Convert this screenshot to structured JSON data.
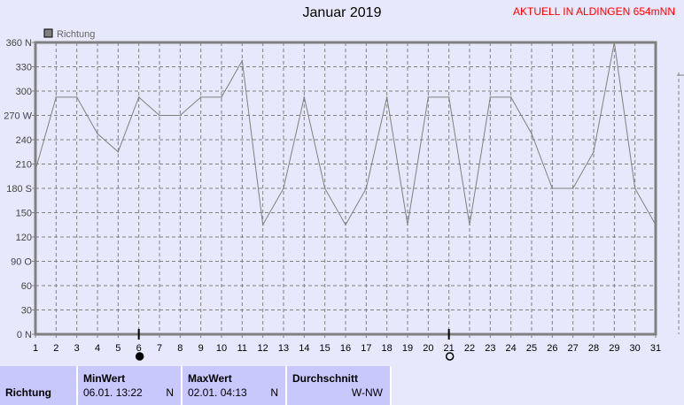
{
  "header": {
    "title": "Januar 2019",
    "station": "AKTUELL IN ALDINGEN 654mNN"
  },
  "chart_data": {
    "type": "line",
    "title": "Januar 2019",
    "legend": [
      "Richtung"
    ],
    "legend_placement": "top-left",
    "grid": true,
    "ylim": [
      0,
      360
    ],
    "xlim": [
      1,
      31
    ],
    "yticks": [
      "360 N",
      "330",
      "300",
      "270 W",
      "240",
      "210",
      "180 S",
      "150",
      "120",
      "90  O",
      "60",
      "30",
      "0   N"
    ],
    "ytick_values": [
      360,
      330,
      300,
      270,
      240,
      210,
      180,
      150,
      120,
      90,
      60,
      30,
      0
    ],
    "x": [
      1,
      2,
      3,
      4,
      5,
      6,
      7,
      8,
      9,
      10,
      11,
      12,
      13,
      14,
      15,
      16,
      17,
      18,
      19,
      20,
      21,
      22,
      23,
      24,
      25,
      26,
      27,
      28,
      29,
      30,
      31
    ],
    "series": [
      {
        "name": "Richtung",
        "color": "#808080",
        "values": [
          202.5,
          292.5,
          292.5,
          247.5,
          225,
          292.5,
          270,
          270,
          292.5,
          292.5,
          337.5,
          135,
          180,
          292.5,
          180,
          135,
          180,
          292.5,
          135,
          292.5,
          292.5,
          135,
          292.5,
          292.5,
          247.5,
          180,
          180,
          225,
          360,
          180,
          135
        ]
      }
    ],
    "markers": [
      {
        "day": 6,
        "symbol": "new-moon-icon"
      },
      {
        "day": 21,
        "symbol": "full-moon-icon"
      }
    ]
  },
  "table": {
    "row_label": "Richtung",
    "min": {
      "label": "MinWert",
      "date": "06.01.  13:22",
      "value": "N"
    },
    "max": {
      "label": "MaxWert",
      "date": "02.01.  04:13",
      "value": "N"
    },
    "avg": {
      "label": "Durchschnitt",
      "value": "W-NW"
    }
  }
}
